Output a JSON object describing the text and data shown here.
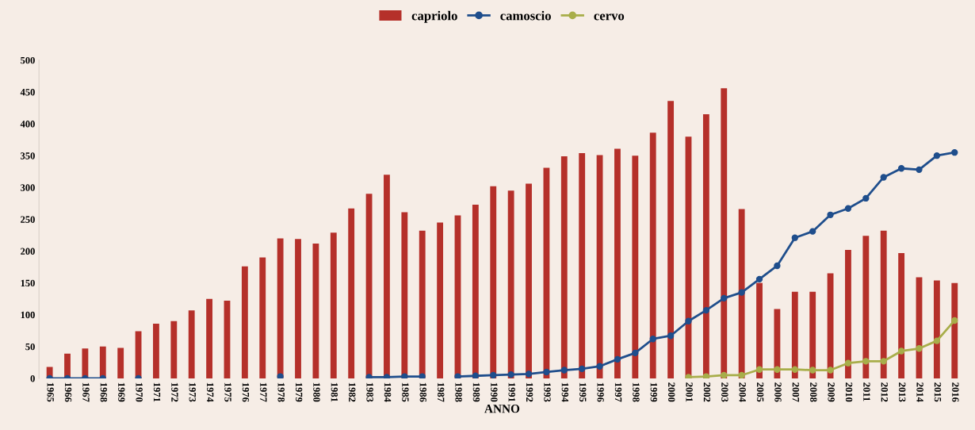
{
  "chart_data": {
    "type": "bar",
    "xlabel": "ANNO",
    "categories": [
      "1965",
      "1966",
      "1967",
      "1968",
      "1969",
      "1970",
      "1971",
      "1972",
      "1973",
      "1974",
      "1975",
      "1976",
      "1977",
      "1978",
      "1979",
      "1980",
      "1981",
      "1982",
      "1983",
      "1984",
      "1985",
      "1986",
      "1987",
      "1988",
      "1989",
      "1990",
      "1991",
      "1992",
      "1993",
      "1994",
      "1995",
      "1996",
      "1997",
      "1998",
      "1999",
      "2000",
      "2001",
      "2002",
      "2003",
      "2004",
      "2005",
      "2006",
      "2007",
      "2008",
      "2009",
      "2010",
      "2011",
      "2012",
      "2013",
      "2014",
      "2015",
      "2016"
    ],
    "series": [
      {
        "name": "capriolo",
        "color": "#b5302a",
        "values": [
          18,
          39,
          47,
          50,
          48,
          74,
          86,
          90,
          107,
          125,
          122,
          176,
          190,
          220,
          219,
          212,
          229,
          267,
          290,
          320,
          261,
          232,
          245,
          256,
          273,
          302,
          295,
          306,
          331,
          349,
          354,
          351,
          361,
          350,
          386,
          436,
          380,
          415,
          456,
          266,
          150,
          109,
          136,
          136,
          165,
          202,
          224,
          232,
          197,
          159,
          154,
          150
        ]
      },
      {
        "name": "camoscio",
        "type": "line",
        "color": "#1f4e8c",
        "values": [
          0,
          0,
          0,
          0,
          null,
          0,
          null,
          null,
          null,
          null,
          null,
          null,
          null,
          3,
          null,
          null,
          null,
          null,
          2,
          2,
          3,
          3,
          null,
          3,
          4,
          5,
          6,
          7,
          10,
          13,
          15,
          19,
          30,
          40,
          62,
          67,
          90,
          107,
          126,
          135,
          156,
          177,
          221,
          231,
          257,
          267,
          283,
          316,
          330,
          328,
          350,
          355
        ]
      },
      {
        "name": "cervo",
        "type": "line",
        "color": "#a8ae4a",
        "values": [
          null,
          null,
          null,
          null,
          null,
          null,
          null,
          null,
          null,
          null,
          null,
          null,
          null,
          null,
          null,
          null,
          null,
          null,
          null,
          null,
          null,
          null,
          null,
          null,
          null,
          null,
          null,
          null,
          null,
          null,
          null,
          null,
          null,
          null,
          null,
          null,
          2,
          3,
          5,
          5,
          14,
          14,
          14,
          13,
          13,
          24,
          27,
          27,
          43,
          47,
          59,
          91
        ]
      }
    ],
    "ylim": [
      0,
      500
    ],
    "yticks": [
      0,
      50,
      100,
      150,
      200,
      250,
      300,
      350,
      400,
      450,
      500
    ],
    "grid": false,
    "legend": "top",
    "marker": "circle",
    "line_style": "solid"
  }
}
